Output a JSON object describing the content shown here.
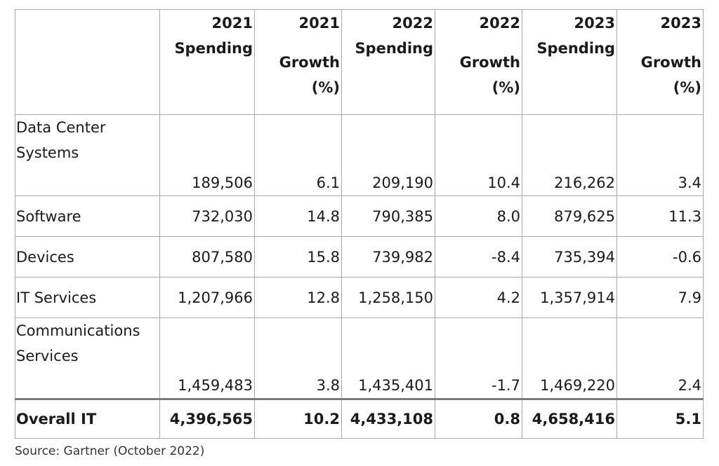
{
  "chart_data": {
    "type": "table",
    "columns": [
      "",
      "2021 Spending",
      "2021 Growth (%)",
      "2022 Spending",
      "2022 Growth (%)",
      "2023 Spending",
      "2023 Growth (%)"
    ],
    "header": [
      {
        "line1": "2021",
        "line2": "Spending"
      },
      {
        "line1": "2021",
        "line2": "Growth",
        "line3": "(%)"
      },
      {
        "line1": "2022",
        "line2": "Spending"
      },
      {
        "line1": "2022",
        "line2": "Growth",
        "line3": "(%)"
      },
      {
        "line1": "2023",
        "line2": "Spending"
      },
      {
        "line1": "2023",
        "line2": "Growth",
        "line3": "(%)"
      }
    ],
    "rows": [
      {
        "label": "Data Center Systems",
        "values": [
          "189,506",
          "6.1",
          "209,190",
          "10.4",
          "216,262",
          "3.4"
        ]
      },
      {
        "label": "Software",
        "values": [
          "732,030",
          "14.8",
          "790,385",
          "8.0",
          "879,625",
          "11.3"
        ]
      },
      {
        "label": "Devices",
        "values": [
          "807,580",
          "15.8",
          "739,982",
          "-8.4",
          "735,394",
          "-0.6"
        ]
      },
      {
        "label": "IT Services",
        "values": [
          "1,207,966",
          "12.8",
          "1,258,150",
          "4.2",
          "1,357,914",
          "7.9"
        ]
      },
      {
        "label": "Communications Services",
        "values": [
          "1,459,483",
          "3.8",
          "1,435,401",
          "-1.7",
          "1,469,220",
          "2.4"
        ]
      },
      {
        "label": "Overall IT",
        "values": [
          "4,396,565",
          "10.2",
          "4,433,108",
          "0.8",
          "4,658,416",
          "5.1"
        ]
      }
    ]
  },
  "source": "Source: Gartner (October 2022)"
}
